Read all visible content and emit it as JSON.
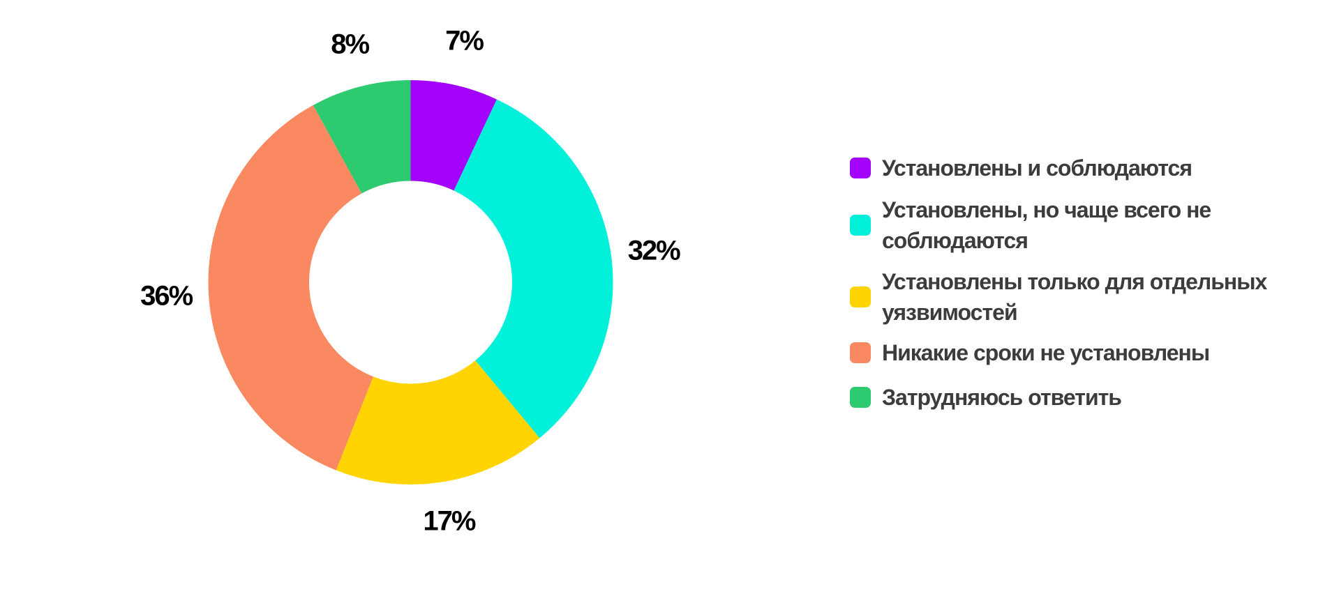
{
  "chart_data": {
    "type": "pie",
    "subtype": "donut",
    "title": "",
    "legend_position": "right",
    "start_angle_deg": 0,
    "direction": "clockwise",
    "slices": [
      {
        "label": "Установлены и соблюдаются",
        "value": 7,
        "pct_label": "7%",
        "color": "#a303fa"
      },
      {
        "label": "Установлены, но чаще всего не\nсоблюдаются",
        "value": 32,
        "pct_label": "32%",
        "color": "#00f0da"
      },
      {
        "label": "Установлены только для отдельных\nуязвимостей",
        "value": 17,
        "pct_label": "17%",
        "color": "#ffd400"
      },
      {
        "label": "Никакие сроки не установлены",
        "value": 36,
        "pct_label": "36%",
        "color": "#fa8861"
      },
      {
        "label": "Затрудняюсь ответить",
        "value": 8,
        "pct_label": "8%",
        "color": "#2dca70"
      }
    ]
  }
}
